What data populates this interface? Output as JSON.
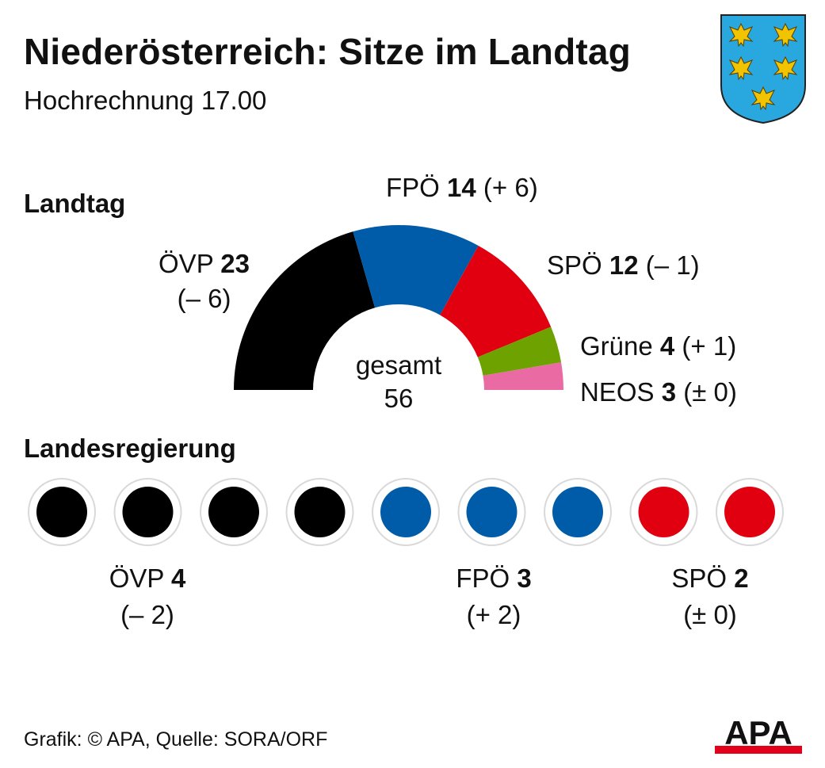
{
  "header": {
    "title": "Niederösterreich: Sitze im Landtag",
    "subtitle": "Hochrechnung 17.00"
  },
  "sections": {
    "landtag": "Landtag",
    "landesregierung": "Landesregierung"
  },
  "colors": {
    "OEVP": "#000000",
    "FPOE": "#005ca8",
    "SPOE": "#e00010",
    "GRUENE": "#6ea200",
    "NEOS": "#ea6ba3",
    "crest_field": "#29a8e0",
    "crest_eagle": "#f2c300",
    "apa_red": "#e3001b"
  },
  "chart_data": [
    {
      "type": "pie",
      "variant": "semicircle",
      "categories": [
        "ÖVP",
        "FPÖ",
        "SPÖ",
        "Grüne",
        "NEOS"
      ],
      "values": [
        23,
        14,
        12,
        4,
        3
      ],
      "changes": [
        "(– 6)",
        "(+ 6)",
        "(– 1)",
        "(+ 1)",
        "(± 0)"
      ],
      "total_label": "gesamt",
      "total": 56
    },
    {
      "type": "table",
      "categories": [
        "ÖVP",
        "FPÖ",
        "SPÖ"
      ],
      "values": [
        4,
        3,
        2
      ],
      "changes": [
        "(– 2)",
        "(+ 2)",
        "(± 0)"
      ]
    }
  ],
  "footer": {
    "source": "Grafik: © APA, Quelle: SORA/ORF",
    "logo": "APA"
  }
}
